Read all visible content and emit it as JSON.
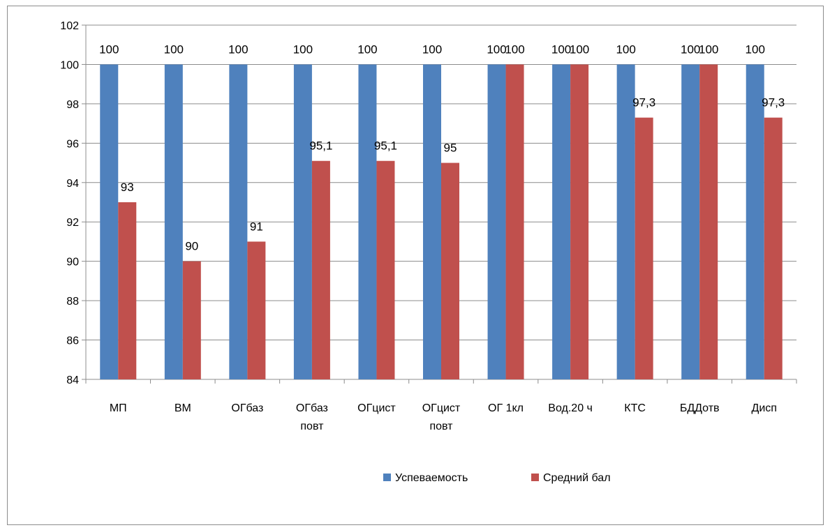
{
  "chart_data": {
    "type": "bar",
    "categories": [
      [
        "МП"
      ],
      [
        "ВМ"
      ],
      [
        "ОГбаз"
      ],
      [
        "ОГбаз",
        "повт"
      ],
      [
        "ОГцист"
      ],
      [
        "ОГцист",
        "повт"
      ],
      [
        "ОГ 1кл"
      ],
      [
        "Вод.20 ч"
      ],
      [
        "КТС"
      ],
      [
        "БДДотв"
      ],
      [
        "Дисп"
      ]
    ],
    "series": [
      {
        "name": "Успеваемость",
        "color": "#4F81BD",
        "values": [
          100,
          100,
          100,
          100,
          100,
          100,
          100,
          100,
          100,
          100,
          100
        ],
        "labels": [
          "100",
          "100",
          "100",
          "100",
          "100",
          "100",
          "100",
          "100",
          "100",
          "100",
          "100"
        ]
      },
      {
        "name": "Средний бал",
        "color": "#C0504D",
        "values": [
          93,
          90,
          91,
          95.1,
          95.1,
          95,
          100,
          100,
          97.3,
          100,
          97.3
        ],
        "labels": [
          "93",
          "90",
          "91",
          "95,1",
          "95,1",
          "95",
          "100",
          "100",
          "97,3",
          "100",
          "97,3"
        ]
      }
    ],
    "ylim": [
      84,
      102
    ],
    "yticks": [
      84,
      86,
      88,
      90,
      92,
      94,
      96,
      98,
      100,
      102
    ],
    "grid": true,
    "legend": "bottom-center",
    "title": "",
    "xlabel": "",
    "ylabel": ""
  }
}
